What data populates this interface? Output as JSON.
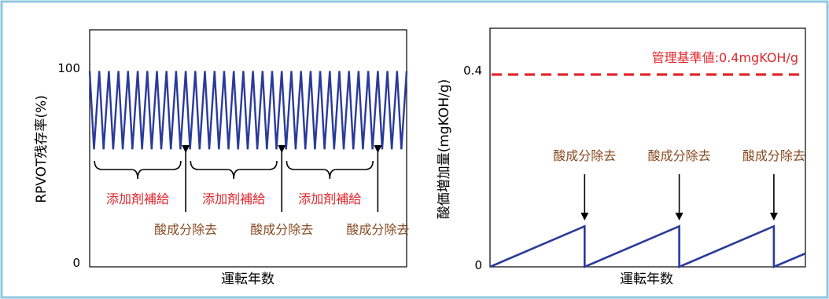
{
  "colors": {
    "frame": "#8ec7e0",
    "line": "#2a3a9b",
    "threshold": "#e0262b",
    "brown": "#8a4a20",
    "axis": "#000000"
  },
  "chart_data": [
    {
      "type": "line",
      "title": "",
      "xlabel": "運転年数",
      "ylabel": "RPVOT残存率(%)",
      "yticks": [
        {
          "value": 0,
          "label": "0"
        },
        {
          "value": 100,
          "label": "100"
        }
      ],
      "ylim": [
        0,
        115
      ],
      "xlim": [
        0,
        33
      ],
      "sawtooth": {
        "peak": 95,
        "trough": 57,
        "cycles": 33,
        "x_start": 0,
        "start_value": 95
      },
      "groups": [
        {
          "label": "添加剤補給",
          "from": 1,
          "to": 9
        },
        {
          "label": "添加剤補給",
          "from": 11,
          "to": 19
        },
        {
          "label": "添加剤補給",
          "from": 21,
          "to": 29
        }
      ],
      "arrows": [
        {
          "label": "酸成分除去",
          "x": 10
        },
        {
          "label": "酸成分除去",
          "x": 20
        },
        {
          "label": "酸成分除去",
          "x": 30
        }
      ],
      "grid": false
    },
    {
      "type": "line",
      "title": "",
      "xlabel": "運転年数",
      "ylabel": "酸価増加量(mgKOH/g)",
      "yticks": [
        {
          "value": 0,
          "label": "0"
        },
        {
          "value": 0.4,
          "label": "0.4"
        }
      ],
      "ylim": [
        0,
        0.5
      ],
      "xlim": [
        0,
        10
      ],
      "threshold": {
        "value": 0.39,
        "label": "管理基準値:0.4mgKOH/g"
      },
      "series": [
        {
          "points": [
            [
              0,
              0
            ],
            [
              3,
              0.085
            ],
            [
              3,
              0
            ],
            [
              6,
              0.085
            ],
            [
              6,
              0
            ],
            [
              9,
              0.085
            ],
            [
              9,
              0
            ],
            [
              10,
              0.028
            ]
          ]
        }
      ],
      "arrows": [
        {
          "label": "酸成分除去",
          "x": 3
        },
        {
          "label": "酸成分除去",
          "x": 6
        },
        {
          "label": "酸成分除去",
          "x": 9
        }
      ],
      "grid": false
    }
  ]
}
